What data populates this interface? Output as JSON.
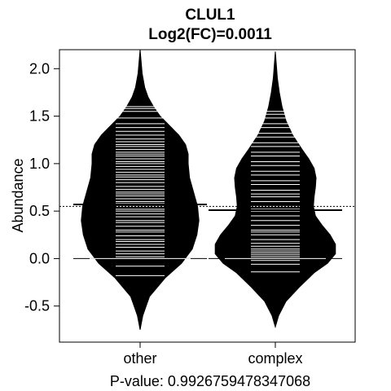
{
  "chart_data": {
    "type": "beanplot",
    "title": "CLUL1",
    "subtitle": "Log2(FC)=0.0011",
    "ylabel": "Abundance",
    "xlabel": "",
    "caption": "P-value: 0.9926759478347068",
    "ylim": [
      -0.88,
      2.2
    ],
    "yticks": [
      -0.5,
      0.0,
      0.5,
      1.0,
      1.5,
      2.0
    ],
    "ytick_labels": [
      "-0.5",
      "0.0",
      "0.5",
      "1.0",
      "1.5",
      "2.0"
    ],
    "categories": [
      "other",
      "complex"
    ],
    "overall_mean": 0.55,
    "colors": {
      "bean": "#000000",
      "strip": "#ffffff",
      "background": "#ffffff"
    },
    "series": [
      {
        "name": "other",
        "group_mean": 0.57,
        "median_line": 0.0,
        "density": [
          [
            -0.75,
            0.0
          ],
          [
            -0.6,
            0.04
          ],
          [
            -0.4,
            0.14
          ],
          [
            -0.2,
            0.38
          ],
          [
            -0.05,
            0.62
          ],
          [
            0.1,
            0.78
          ],
          [
            0.25,
            0.85
          ],
          [
            0.4,
            0.88
          ],
          [
            0.55,
            0.86
          ],
          [
            0.7,
            0.8
          ],
          [
            0.85,
            0.74
          ],
          [
            1.0,
            0.72
          ],
          [
            1.1,
            0.72
          ],
          [
            1.2,
            0.68
          ],
          [
            1.3,
            0.58
          ],
          [
            1.4,
            0.44
          ],
          [
            1.5,
            0.3
          ],
          [
            1.6,
            0.2
          ],
          [
            1.7,
            0.12
          ],
          [
            1.8,
            0.07
          ],
          [
            1.95,
            0.03
          ],
          [
            2.2,
            0.0
          ]
        ],
        "points": [
          -0.18,
          -0.08,
          0.0,
          0.02,
          0.05,
          0.08,
          0.12,
          0.15,
          0.18,
          0.2,
          0.24,
          0.28,
          0.3,
          0.34,
          0.38,
          0.4,
          0.44,
          0.47,
          0.5,
          0.52,
          0.55,
          0.58,
          0.6,
          0.63,
          0.66,
          0.68,
          0.7,
          0.73,
          0.76,
          0.8,
          0.83,
          0.86,
          0.88,
          0.91,
          0.94,
          0.97,
          1.0,
          1.02,
          1.05,
          1.08,
          1.1,
          1.12,
          1.15,
          1.18,
          1.2,
          1.23,
          1.26,
          1.3,
          1.34,
          1.38,
          1.42,
          1.48,
          1.55,
          1.58,
          1.6
        ]
      },
      {
        "name": "complex",
        "group_mean": 0.51,
        "median_line": 0.0,
        "density": [
          [
            -0.72,
            0.0
          ],
          [
            -0.6,
            0.05
          ],
          [
            -0.45,
            0.16
          ],
          [
            -0.3,
            0.36
          ],
          [
            -0.15,
            0.58
          ],
          [
            -0.05,
            0.78
          ],
          [
            0.05,
            0.9
          ],
          [
            0.15,
            0.9
          ],
          [
            0.25,
            0.82
          ],
          [
            0.35,
            0.7
          ],
          [
            0.45,
            0.6
          ],
          [
            0.55,
            0.57
          ],
          [
            0.65,
            0.58
          ],
          [
            0.75,
            0.6
          ],
          [
            0.85,
            0.61
          ],
          [
            0.95,
            0.58
          ],
          [
            1.05,
            0.5
          ],
          [
            1.15,
            0.4
          ],
          [
            1.3,
            0.26
          ],
          [
            1.45,
            0.16
          ],
          [
            1.6,
            0.1
          ],
          [
            1.75,
            0.06
          ],
          [
            1.9,
            0.03
          ],
          [
            2.18,
            0.0
          ]
        ],
        "points": [
          -0.14,
          -0.06,
          -0.02,
          0.0,
          0.02,
          0.04,
          0.06,
          0.08,
          0.1,
          0.13,
          0.16,
          0.2,
          0.25,
          0.28,
          0.3,
          0.35,
          0.4,
          0.45,
          0.5,
          0.52,
          0.55,
          0.6,
          0.65,
          0.68,
          0.72,
          0.78,
          0.82,
          0.88,
          0.92,
          0.98,
          1.02,
          1.08,
          1.12,
          1.18,
          1.22,
          1.28,
          1.32,
          1.38,
          1.42,
          1.48,
          1.52,
          1.55
        ]
      }
    ]
  }
}
